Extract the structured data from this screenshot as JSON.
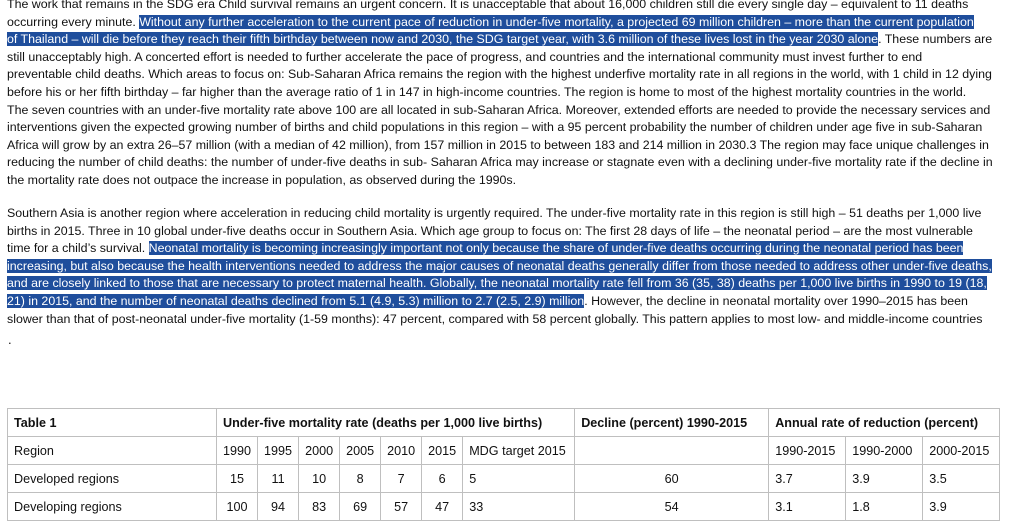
{
  "paragraph1": {
    "lines": [
      [
        {
          "text": "The work that remains in the SDG era Child survival remains an urgent concern. It is unacceptable that about 16,000 children still die every single day – equivalent to 11 deaths",
          "hl": false
        }
      ],
      [
        {
          "text": "occurring every minute. ",
          "hl": false
        },
        {
          "text": "Without any further acceleration to the current pace of reduction in under-five mortality, a projected 69 million children – more than the current population",
          "hl": true
        }
      ],
      [
        {
          "text": "of Thailand – will die before they reach their fifth birthday between now and 2030, the SDG target year, with 3.6 million of these lives lost in the year 2030 alone",
          "hl": true
        },
        {
          "text": ". These numbers are",
          "hl": false
        }
      ],
      [
        {
          "text": "still unacceptably high. A concerted effort is needed to further accelerate the pace of progress, and countries and the international community must invest further to end",
          "hl": false
        }
      ],
      [
        {
          "text": "preventable child deaths. Which areas to focus on: Sub-Saharan Africa remains the region with the highest underfive mortality rate in all regions in the world, with 1 child in 12 dying",
          "hl": false
        }
      ],
      [
        {
          "text": "before his or her fifth birthday – far higher than the average ratio of 1 in 147 in high-income countries. The region is home to most of the highest mortality countries in the world.",
          "hl": false
        }
      ],
      [
        {
          "text": "The seven countries with an under-five mortality rate above 100 are all located in sub-Saharan Africa. Moreover, extended efforts are needed to provide the necessary services and",
          "hl": false
        }
      ],
      [
        {
          "text": "interventions given the expected growing number of births and child populations in this region – with a 95 percent probability the number of children under age five in sub-Saharan",
          "hl": false
        }
      ],
      [
        {
          "text": "Africa will grow by an extra 26–57 million (with a median of 42 million), from 157 million in 2015 to between 183 and 214 million in 2030.3 The region may face unique challenges in",
          "hl": false
        }
      ],
      [
        {
          "text": "reducing the number of child deaths: the number of under-five deaths in sub- Saharan Africa may increase or stagnate even with a declining under-five mortality rate if the decline in",
          "hl": false
        }
      ],
      [
        {
          "text": "the mortality rate does not outpace the increase in population, as observed during the 1990s.",
          "hl": false
        }
      ]
    ]
  },
  "paragraph2": {
    "lines": [
      [
        {
          "text": "Southern Asia is another region where acceleration in reducing child mortality is urgently required. The under-five mortality rate in this region is still high – 51 deaths per 1,000 live",
          "hl": false
        }
      ],
      [
        {
          "text": "births in 2015. Three in 10 global under-five deaths occur in Southern Asia. Which age group to focus on: The first 28 days of life – the neonatal period – are the most vulnerable",
          "hl": false
        }
      ],
      [
        {
          "text": "time for a child’s survival. ",
          "hl": false
        },
        {
          "text": "Neonatal mortality is becoming increasingly important not only because the share of under-five deaths occurring during the neonatal period has been",
          "hl": true
        }
      ],
      [
        {
          "text": "increasing, but also because the health interventions needed to address the major causes of neonatal deaths generally differ from those needed to address other under-five deaths,",
          "hl": true
        }
      ],
      [
        {
          "text": "and are closely linked to those that are necessary to protect maternal health. Globally, the neonatal mortality rate fell from 36 (35, 38) deaths per 1,000 live births in 1990 to 19 (18,",
          "hl": true
        }
      ],
      [
        {
          "text": "21) in 2015, and the number of neonatal deaths declined from 5.1 (4.9, 5.3) million to 2.7 (2.5, 2.9) million",
          "hl": true
        },
        {
          "text": ". However, the decline in neonatal mortality over 1990–2015 has been",
          "hl": false
        }
      ],
      [
        {
          "text": "slower than that of post-neonatal under-five mortality (1-59 months): 47 percent, compared with 58 percent globally. This pattern applies to most low- and middle-income countries",
          "hl": false
        }
      ]
    ]
  },
  "stray_dot": ".",
  "table": {
    "label": "Table 1",
    "group_u5mr": "Under-five mortality rate (deaths per 1,000 live births)",
    "group_decline": "Decline (percent) 1990-2015",
    "group_arr": "Annual rate of reduction (percent)",
    "region_header": "Region",
    "years": [
      "1990",
      "1995",
      "2000",
      "2005",
      "2010",
      "2015"
    ],
    "mdg_header": "MDG target 2015",
    "arr_periods": [
      "1990-2015",
      "1990-2000",
      "2000-2015"
    ],
    "rows": [
      {
        "region": "Developed regions",
        "values": [
          "15",
          "11",
          "10",
          "8",
          "7",
          "6"
        ],
        "mdg": "5",
        "decline": "60",
        "arr": [
          "3.7",
          "3.9",
          "3.5"
        ]
      },
      {
        "region": "Developing regions",
        "values": [
          "100",
          "94",
          "83",
          "69",
          "57",
          "47"
        ],
        "mdg": "33",
        "decline": "54",
        "arr": [
          "3.1",
          "1.8",
          "3.9"
        ]
      }
    ]
  }
}
